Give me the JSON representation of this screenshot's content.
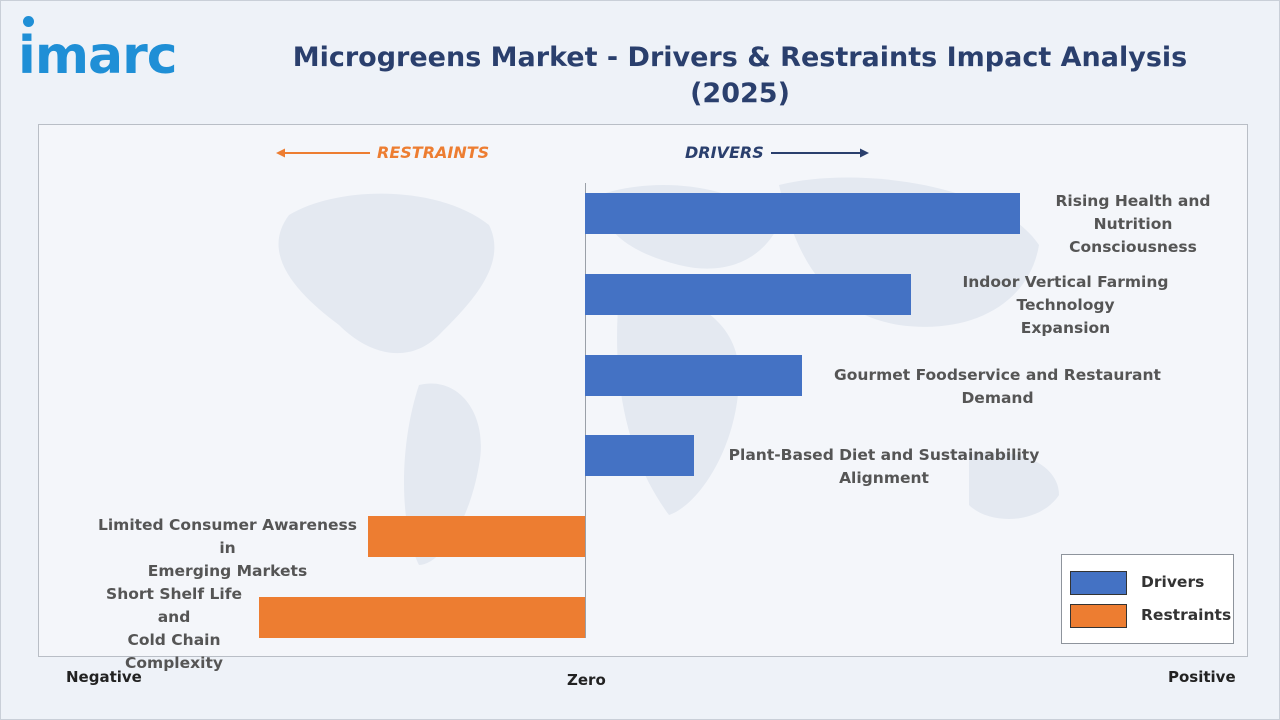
{
  "brand": {
    "logo_text": "imarc",
    "accent": "#1f8fd6"
  },
  "title": "Microgreens Market - Drivers & Restraints Impact Analysis (2025)",
  "headers": {
    "restraints": "RESTRAINTS",
    "drivers": "DRIVERS"
  },
  "axis": {
    "negative": "Negative",
    "zero": "Zero",
    "positive": "Positive"
  },
  "legend": [
    {
      "label": "Drivers",
      "color": "#4472c4"
    },
    {
      "label": "Restraints",
      "color": "#ed7d31"
    }
  ],
  "chart_data": {
    "type": "bar",
    "orientation": "horizontal",
    "title": "Microgreens Market - Drivers & Restraints Impact Analysis (2025)",
    "categories": [
      "Rising Health and Nutrition Consciousness",
      "Indoor Vertical Farming Technology Expansion",
      "Gourmet Foodservice and Restaurant Demand",
      "Plant-Based Diet and Sustainability Alignment",
      "Limited Consumer Awareness in Emerging Markets",
      "Short Shelf Life and Cold Chain Complexity"
    ],
    "series": [
      {
        "name": "Drivers",
        "color": "#4472c4",
        "values": [
          4,
          3,
          2,
          1,
          null,
          null
        ]
      },
      {
        "name": "Restraints",
        "color": "#ed7d31",
        "values": [
          null,
          null,
          null,
          null,
          -2,
          -3
        ]
      }
    ],
    "xlim": [
      -5,
      6
    ],
    "grid": false,
    "legend_position": "bottom-right"
  }
}
